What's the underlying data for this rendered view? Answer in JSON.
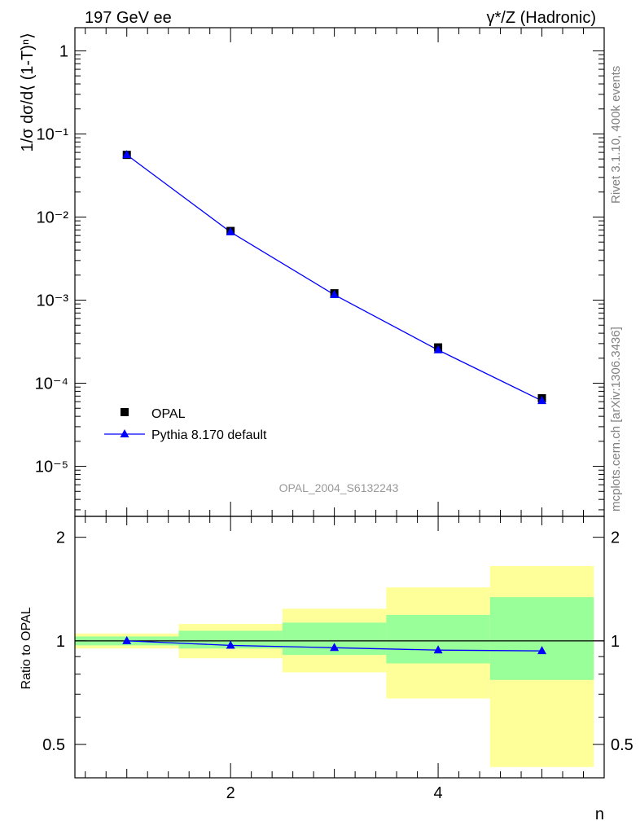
{
  "header": {
    "left_title": "197 GeV ee",
    "right_title": "γ*/Z (Hadronic)"
  },
  "side_text": {
    "rivet": "Rivet 3.1.10,  400k events",
    "mcplots": "mcplots.cern.ch [arXiv:1306.3436]"
  },
  "chart_data": [
    {
      "type": "scatter",
      "ylabel": "1/σ dσ/d⟨ (1-T)ⁿ⟩",
      "xlabel": "",
      "yscale": "log",
      "ylim": [
        2.5e-06,
        1.9
      ],
      "xlim": [
        0.5,
        5.6
      ],
      "watermark": "OPAL_2004_S6132243",
      "y_tick_labels": [
        "1",
        "10⁻¹",
        "10⁻²",
        "10⁻³",
        "10⁻⁴",
        "10⁻⁵"
      ],
      "legend_position": "bottom-left",
      "series": [
        {
          "name": "OPAL",
          "marker": "square",
          "color": "#000000",
          "x": [
            1,
            2,
            3,
            4,
            5
          ],
          "y": [
            0.056,
            0.0068,
            0.00121,
            0.00027,
            6.6e-05
          ]
        },
        {
          "name": "Pythia 8.170 default",
          "marker": "triangle",
          "color": "#0000ff",
          "x": [
            1,
            2,
            3,
            4,
            5
          ],
          "y": [
            0.056,
            0.0066,
            0.00116,
            0.000251,
            6.15e-05
          ]
        }
      ]
    },
    {
      "type": "line",
      "ylabel": "Ratio to OPAL",
      "xlabel": "n",
      "yscale": "log",
      "ylim": [
        0.4,
        2.3
      ],
      "xlim": [
        0.5,
        5.6
      ],
      "x_tick_labels": [
        "2",
        "4"
      ],
      "y_tick_labels": [
        "0.5",
        "1",
        "2"
      ],
      "bins": [
        [
          0.5,
          1.5
        ],
        [
          1.5,
          2.5
        ],
        [
          2.5,
          3.5
        ],
        [
          3.5,
          4.5
        ],
        [
          4.5,
          5.5
        ]
      ],
      "yellow_band": {
        "color": "#ffff99",
        "lo": [
          0.95,
          0.89,
          0.81,
          0.68,
          0.43
        ],
        "hi": [
          1.05,
          1.12,
          1.24,
          1.43,
          1.65
        ]
      },
      "green_band": {
        "color": "#99ff99",
        "lo": [
          0.97,
          0.95,
          0.91,
          0.86,
          0.77
        ],
        "hi": [
          1.03,
          1.07,
          1.13,
          1.19,
          1.34
        ]
      },
      "series": [
        {
          "name": "Pythia 8.170 default",
          "color": "#0000ff",
          "x": [
            1,
            2,
            3,
            4,
            5
          ],
          "y": [
            1.0,
            0.97,
            0.955,
            0.94,
            0.935
          ]
        }
      ]
    }
  ]
}
